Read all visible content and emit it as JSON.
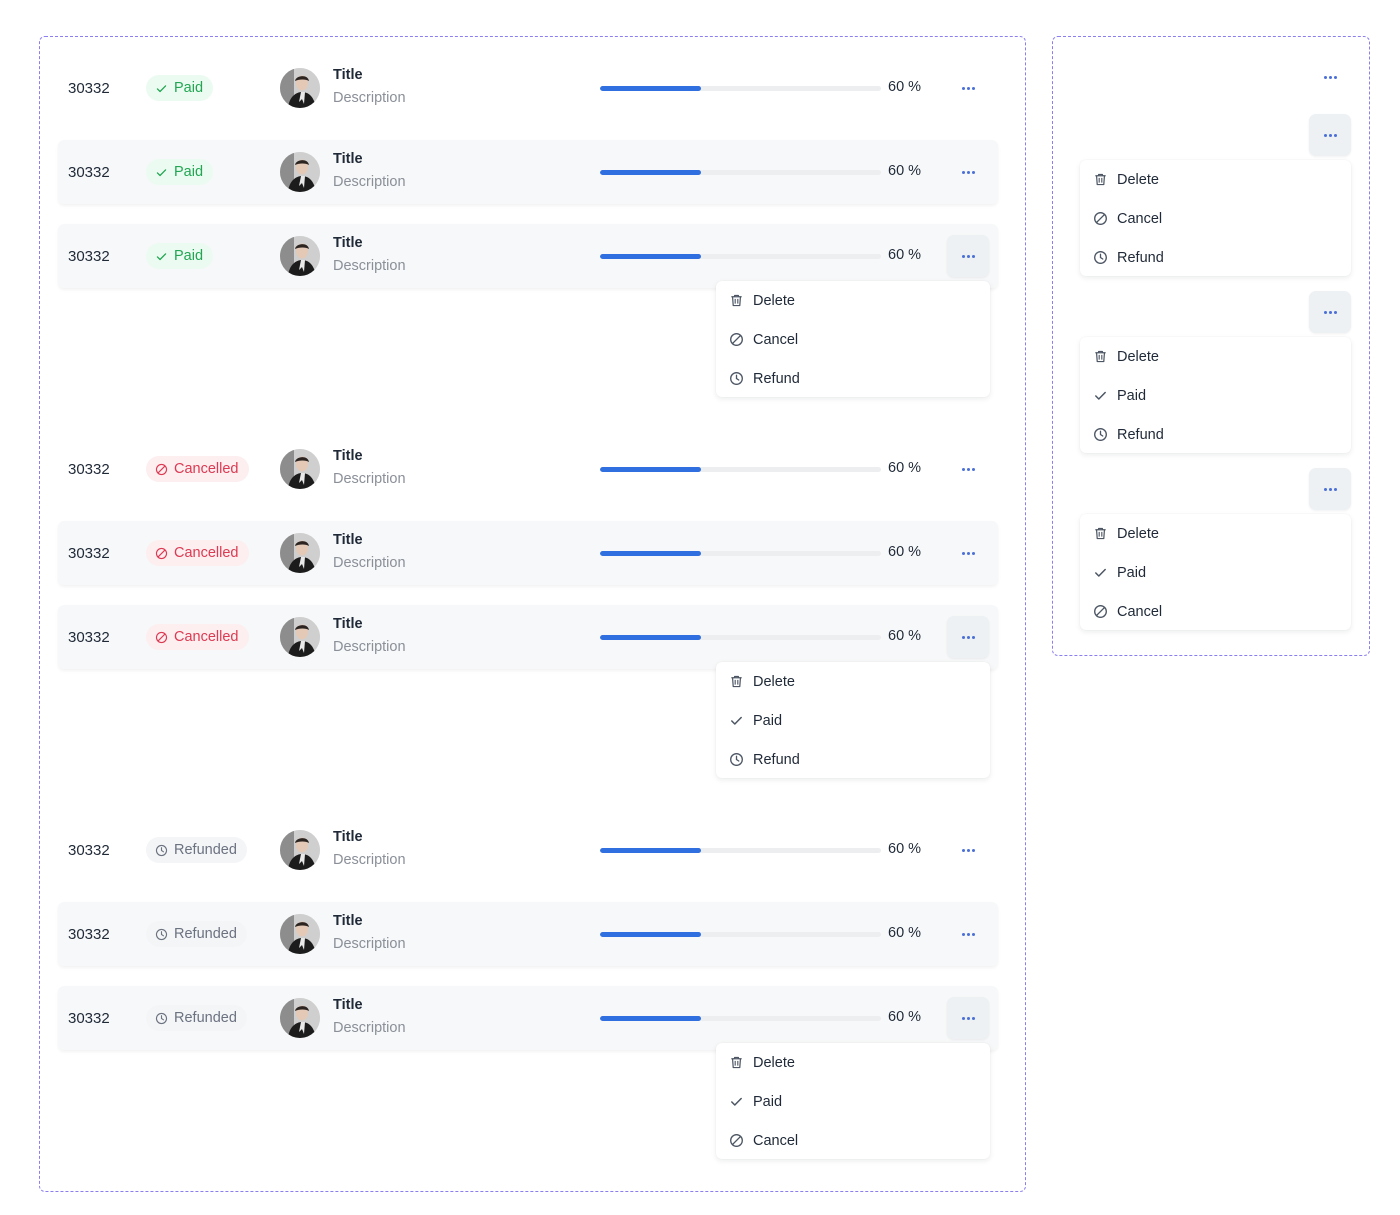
{
  "rows": [
    {
      "id": "30332",
      "status": "Paid",
      "status_kind": "paid",
      "title": "Title",
      "description": "Description",
      "progress": 0.6,
      "progress_label": "60 %",
      "shaded": false,
      "open": false
    },
    {
      "id": "30332",
      "status": "Paid",
      "status_kind": "paid",
      "title": "Title",
      "description": "Description",
      "progress": 0.6,
      "progress_label": "60 %",
      "shaded": true,
      "open": false
    },
    {
      "id": "30332",
      "status": "Paid",
      "status_kind": "paid",
      "title": "Title",
      "description": "Description",
      "progress": 0.6,
      "progress_label": "60 %",
      "shaded": true,
      "open": true
    },
    {
      "id": "30332",
      "status": "Cancelled",
      "status_kind": "cancelled",
      "title": "Title",
      "description": "Description",
      "progress": 0.6,
      "progress_label": "60 %",
      "shaded": false,
      "open": false
    },
    {
      "id": "30332",
      "status": "Cancelled",
      "status_kind": "cancelled",
      "title": "Title",
      "description": "Description",
      "progress": 0.6,
      "progress_label": "60 %",
      "shaded": true,
      "open": false
    },
    {
      "id": "30332",
      "status": "Cancelled",
      "status_kind": "cancelled",
      "title": "Title",
      "description": "Description",
      "progress": 0.6,
      "progress_label": "60 %",
      "shaded": true,
      "open": true
    },
    {
      "id": "30332",
      "status": "Refunded",
      "status_kind": "refunded",
      "title": "Title",
      "description": "Description",
      "progress": 0.6,
      "progress_label": "60 %",
      "shaded": false,
      "open": false
    },
    {
      "id": "30332",
      "status": "Refunded",
      "status_kind": "refunded",
      "title": "Title",
      "description": "Description",
      "progress": 0.6,
      "progress_label": "60 %",
      "shaded": true,
      "open": false
    },
    {
      "id": "30332",
      "status": "Refunded",
      "status_kind": "refunded",
      "title": "Title",
      "description": "Description",
      "progress": 0.6,
      "progress_label": "60 %",
      "shaded": true,
      "open": true
    }
  ],
  "menus": {
    "paid": [
      {
        "label": "Delete",
        "icon": "trash-icon"
      },
      {
        "label": "Cancel",
        "icon": "cancel-icon"
      },
      {
        "label": "Refund",
        "icon": "clock-icon"
      }
    ],
    "cancelled": [
      {
        "label": "Delete",
        "icon": "trash-icon"
      },
      {
        "label": "Paid",
        "icon": "check-icon"
      },
      {
        "label": "Refund",
        "icon": "clock-icon"
      }
    ],
    "refunded": [
      {
        "label": "Delete",
        "icon": "trash-icon"
      },
      {
        "label": "Paid",
        "icon": "check-icon"
      },
      {
        "label": "Cancel",
        "icon": "cancel-icon"
      }
    ]
  },
  "side_panel": {
    "idle_button_icon": "more-icon",
    "states": [
      "paid",
      "cancelled",
      "refunded"
    ]
  },
  "colors": {
    "accent": "#2f6fe0",
    "paid": "#22a653",
    "cancelled": "#dc3a52",
    "refunded": "#6b7280",
    "frame": "#8b7ff0"
  }
}
